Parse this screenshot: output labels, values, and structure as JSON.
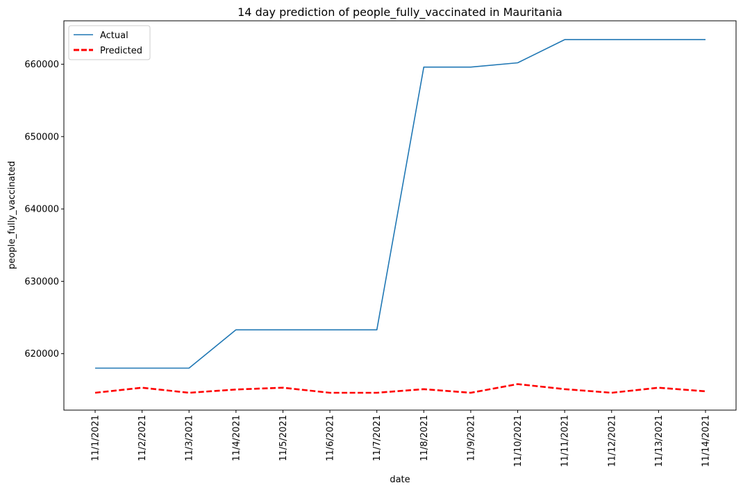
{
  "chart_data": {
    "type": "line",
    "title": "14 day prediction of people_fully_vaccinated in Mauritania",
    "xlabel": "date",
    "ylabel": "people_fully_vaccinated",
    "categories": [
      "11/1/2021",
      "11/2/2021",
      "11/3/2021",
      "11/4/2021",
      "11/5/2021",
      "11/6/2021",
      "11/7/2021",
      "11/8/2021",
      "11/9/2021",
      "11/10/2021",
      "11/11/2021",
      "11/12/2021",
      "11/13/2021",
      "11/14/2021"
    ],
    "yticks": [
      "620000",
      "630000",
      "640000",
      "650000",
      "660000"
    ],
    "ylim": [
      612200,
      666000
    ],
    "grid": false,
    "legend_position": "upper-left",
    "series": [
      {
        "name": "Actual",
        "color": "#1f77b4",
        "style": "solid",
        "values": [
          618000,
          618000,
          618000,
          623300,
          623300,
          623300,
          623300,
          659600,
          659600,
          660200,
          663400,
          663400,
          663400,
          663400
        ]
      },
      {
        "name": "Predicted",
        "color": "#ff0000",
        "style": "dashed",
        "values": [
          614600,
          615300,
          614600,
          615050,
          615300,
          614600,
          614600,
          615100,
          614600,
          615800,
          615100,
          614600,
          615300,
          614800
        ]
      }
    ]
  }
}
